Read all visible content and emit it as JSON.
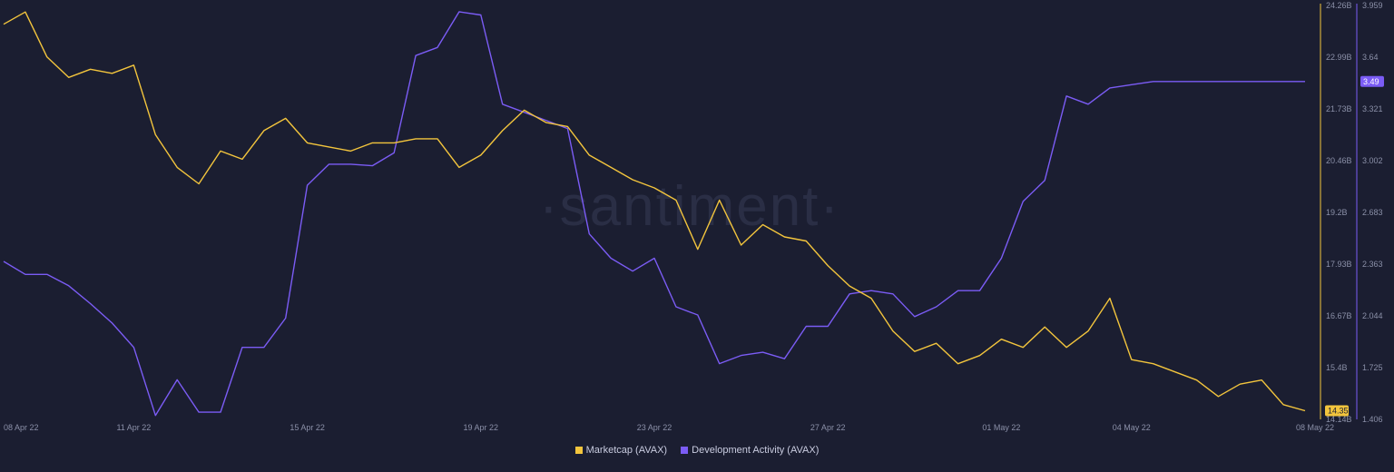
{
  "watermark": "·santiment·",
  "colors": {
    "background": "#1b1e31",
    "marketcap": "#f3c53d",
    "dev_activity": "#7b5cf5",
    "tick_text": "#8b90a8"
  },
  "chart_data": {
    "type": "line",
    "title": "",
    "x_ticks": [
      "08 Apr 22",
      "11 Apr 22",
      "15 Apr 22",
      "19 Apr 22",
      "23 Apr 22",
      "27 Apr 22",
      "01 May 22",
      "04 May 22",
      "08 May 22"
    ],
    "x_range": [
      "08 Apr 22",
      "08 May 22"
    ],
    "grid": false,
    "legend_position": "bottom-center",
    "y_axes": {
      "left": {
        "series": "Marketcap (AVAX)",
        "ticks": [
          "24.26B",
          "22.99B",
          "21.73B",
          "20.46B",
          "19.2B",
          "17.93B",
          "16.67B",
          "15.4B",
          "14.14B"
        ],
        "range": [
          14.14,
          24.26
        ],
        "unit": "B",
        "current_label": "14.35B"
      },
      "right": {
        "series": "Development Activity (AVAX)",
        "ticks": [
          "3.959",
          "3.64",
          "3.321",
          "3.002",
          "2.683",
          "2.363",
          "2.044",
          "1.725",
          "1.406"
        ],
        "range": [
          1.406,
          3.959
        ],
        "current_label": "3.49"
      }
    },
    "series": [
      {
        "name": "Marketcap (AVAX)",
        "axis": "left",
        "color": "#f3c53d",
        "x": [
          0,
          0.5,
          1,
          1.5,
          2,
          2.5,
          3,
          3.5,
          4,
          4.5,
          5,
          5.5,
          6,
          6.5,
          7,
          7.5,
          8,
          8.5,
          9,
          9.5,
          10,
          10.5,
          11,
          11.5,
          12,
          12.5,
          13,
          13.5,
          14,
          14.5,
          15,
          15.5,
          16,
          16.5,
          17,
          17.5,
          18,
          18.5,
          19,
          19.5,
          20,
          20.5,
          21,
          21.5,
          22,
          22.5,
          23,
          23.5,
          24,
          24.5,
          25,
          25.5,
          26,
          26.5,
          27,
          27.5,
          28,
          28.5,
          29,
          29.5,
          30
        ],
        "values": [
          23.8,
          24.1,
          23.0,
          22.5,
          22.7,
          22.6,
          22.8,
          21.1,
          20.3,
          19.9,
          20.7,
          20.5,
          21.2,
          21.5,
          20.9,
          20.8,
          20.7,
          20.9,
          20.9,
          21.0,
          21.0,
          20.3,
          20.6,
          21.2,
          21.7,
          21.4,
          21.3,
          20.6,
          20.3,
          20.0,
          19.8,
          19.5,
          18.3,
          19.5,
          18.4,
          18.9,
          18.6,
          18.5,
          17.9,
          17.4,
          17.1,
          16.3,
          15.8,
          16.0,
          15.5,
          15.7,
          16.1,
          15.9,
          16.4,
          15.9,
          16.3,
          17.1,
          15.6,
          15.5,
          15.3,
          15.1,
          14.7,
          15.0,
          15.1,
          14.5,
          14.35
        ]
      },
      {
        "name": "Development Activity (AVAX)",
        "axis": "right",
        "color": "#7b5cf5",
        "x": [
          0,
          0.5,
          1,
          1.5,
          2,
          2.5,
          3,
          3.5,
          4,
          4.5,
          5,
          5.5,
          6,
          6.5,
          7,
          7.5,
          8,
          8.5,
          9,
          9.5,
          10,
          10.5,
          11,
          11.5,
          12,
          12.5,
          13,
          13.5,
          14,
          14.5,
          15,
          15.5,
          16,
          16.5,
          17,
          17.5,
          18,
          18.5,
          19,
          19.5,
          20,
          20.5,
          21,
          21.5,
          22,
          22.5,
          23,
          23.5,
          24,
          24.5,
          25,
          25.5,
          26,
          26.5,
          27,
          27.5,
          28,
          28.5,
          29,
          29.5,
          30
        ],
        "values": [
          2.38,
          2.3,
          2.3,
          2.23,
          2.12,
          2.0,
          1.85,
          1.43,
          1.65,
          1.45,
          1.45,
          1.85,
          1.85,
          2.03,
          2.85,
          2.98,
          2.98,
          2.97,
          3.05,
          3.65,
          3.7,
          3.92,
          3.9,
          3.35,
          3.3,
          3.25,
          3.2,
          2.55,
          2.4,
          2.32,
          2.4,
          2.1,
          2.05,
          1.75,
          1.8,
          1.82,
          1.78,
          1.98,
          1.98,
          2.18,
          2.2,
          2.18,
          2.04,
          2.1,
          2.2,
          2.2,
          2.4,
          2.75,
          2.88,
          3.4,
          3.35,
          3.45,
          3.47,
          3.49,
          3.49,
          3.49,
          3.49,
          3.49,
          3.49,
          3.49,
          3.49
        ]
      }
    ]
  }
}
